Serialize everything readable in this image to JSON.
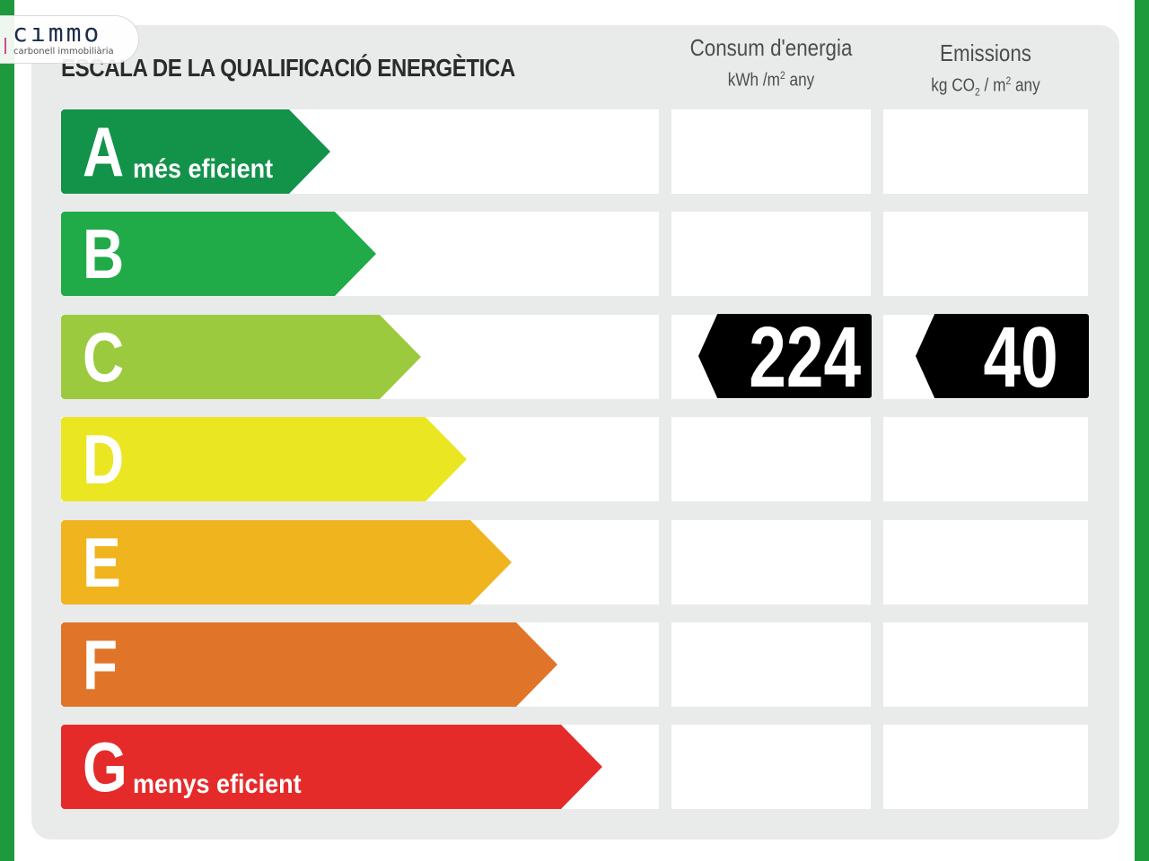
{
  "logo": {
    "word": "cımmo",
    "sub": "carbonell immobiliària"
  },
  "chart_data": {
    "type": "table",
    "title": "ESCALA DE LA QUALIFICACIÓ ENERGÈTICA",
    "columns": [
      {
        "title": "Consum d'energia",
        "unit_prefix": "kWh /m",
        "unit_sup": "2",
        "unit_suffix": " any"
      },
      {
        "title": "Emissions",
        "unit_prefix": "kg CO",
        "unit_sub": "2",
        "unit_mid": " / m",
        "unit_sup": "2",
        "unit_suffix": " any"
      }
    ],
    "ratings": [
      {
        "letter": "A",
        "note": "més eficient",
        "color": "#13924a"
      },
      {
        "letter": "B",
        "note": "",
        "color": "#21aa48"
      },
      {
        "letter": "C",
        "note": "",
        "color": "#9bca3e"
      },
      {
        "letter": "D",
        "note": "",
        "color": "#eae621"
      },
      {
        "letter": "E",
        "note": "",
        "color": "#f0b41f"
      },
      {
        "letter": "F",
        "note": "",
        "color": "#e0752a"
      },
      {
        "letter": "G",
        "note": "menys eficient",
        "color": "#e52b2a"
      }
    ],
    "result": {
      "rating": "C",
      "consumption": "224",
      "emissions": "40"
    }
  },
  "colors": {
    "frame_green": "#1e9a3c",
    "panel": "#e9eaea",
    "tag": "#000000"
  }
}
